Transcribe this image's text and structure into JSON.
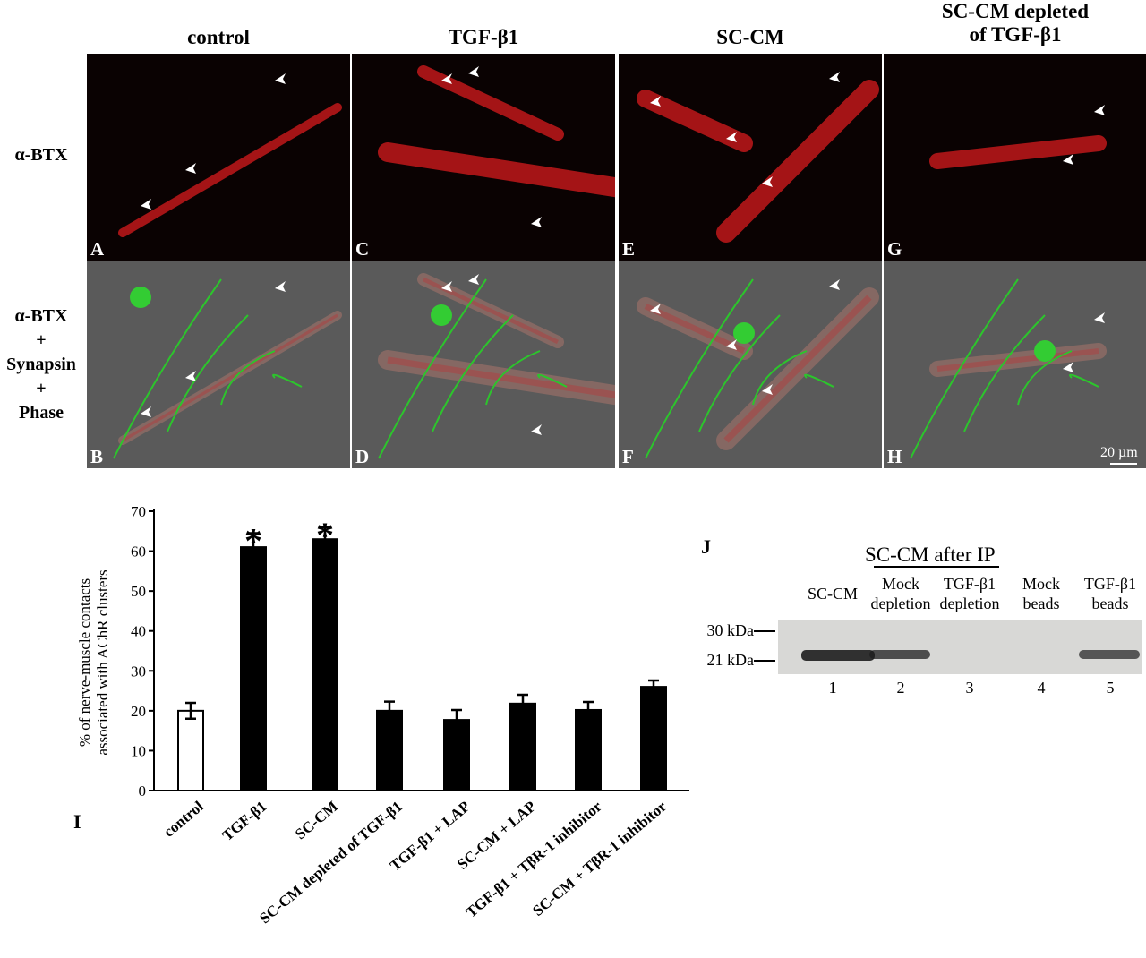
{
  "micrographs": {
    "columns": [
      "control",
      "TGF-β1",
      "SC-CM",
      "SC-CM depleted of TGF-β1"
    ],
    "rows": [
      {
        "lines": [
          "α-BTX"
        ]
      },
      {
        "lines": [
          "α-BTX",
          "+",
          "Synapsin",
          "+",
          "Phase"
        ]
      }
    ],
    "panel_letters": [
      "A",
      "C",
      "E",
      "G",
      "B",
      "D",
      "F",
      "H"
    ],
    "scale_bar": "20 µm"
  },
  "chart_data": {
    "type": "bar",
    "panel_letter": "I",
    "categories": [
      "control",
      "TGF-β1",
      "SC-CM",
      "SC-CM depleted of TGF-β1",
      "TGF-β1 + LAP",
      "SC-CM + LAP",
      "TGF-β1 + TβR-1 inhibitor",
      "SC-CM + TβR-1 inhibitor"
    ],
    "values": [
      20,
      61,
      63,
      20,
      17.7,
      21.8,
      20.2,
      26
    ],
    "errors": [
      2,
      3.5,
      3,
      2.3,
      2.5,
      2.2,
      2,
      1.6
    ],
    "bar_colors": [
      "#ffffff",
      "#000000",
      "#000000",
      "#000000",
      "#000000",
      "#000000",
      "#000000",
      "#000000"
    ],
    "significance": [
      "",
      "*",
      "*",
      "",
      "",
      "",
      "",
      ""
    ],
    "ylabel": [
      "% of nerve-muscle contacts",
      "associated with AChR clusters"
    ],
    "ylim": [
      0,
      70
    ],
    "yticks": [
      0,
      10,
      20,
      30,
      40,
      50,
      60,
      70
    ],
    "grid": false
  },
  "western": {
    "panel_letter": "J",
    "group_title": "SC-CM after IP",
    "lanes": [
      {
        "label": [
          "SC-CM"
        ],
        "num": "1",
        "band": 1.0
      },
      {
        "label": [
          "Mock",
          "depletion"
        ],
        "num": "2",
        "band": 0.7
      },
      {
        "label": [
          "TGF-β1",
          "depletion"
        ],
        "num": "3",
        "band": 0
      },
      {
        "label": [
          "Mock",
          "beads"
        ],
        "num": "4",
        "band": 0
      },
      {
        "label": [
          "TGF-β1",
          "beads"
        ],
        "num": "5",
        "band": 0.6
      }
    ],
    "markers": [
      "30 kDa",
      "21 kDa"
    ]
  }
}
